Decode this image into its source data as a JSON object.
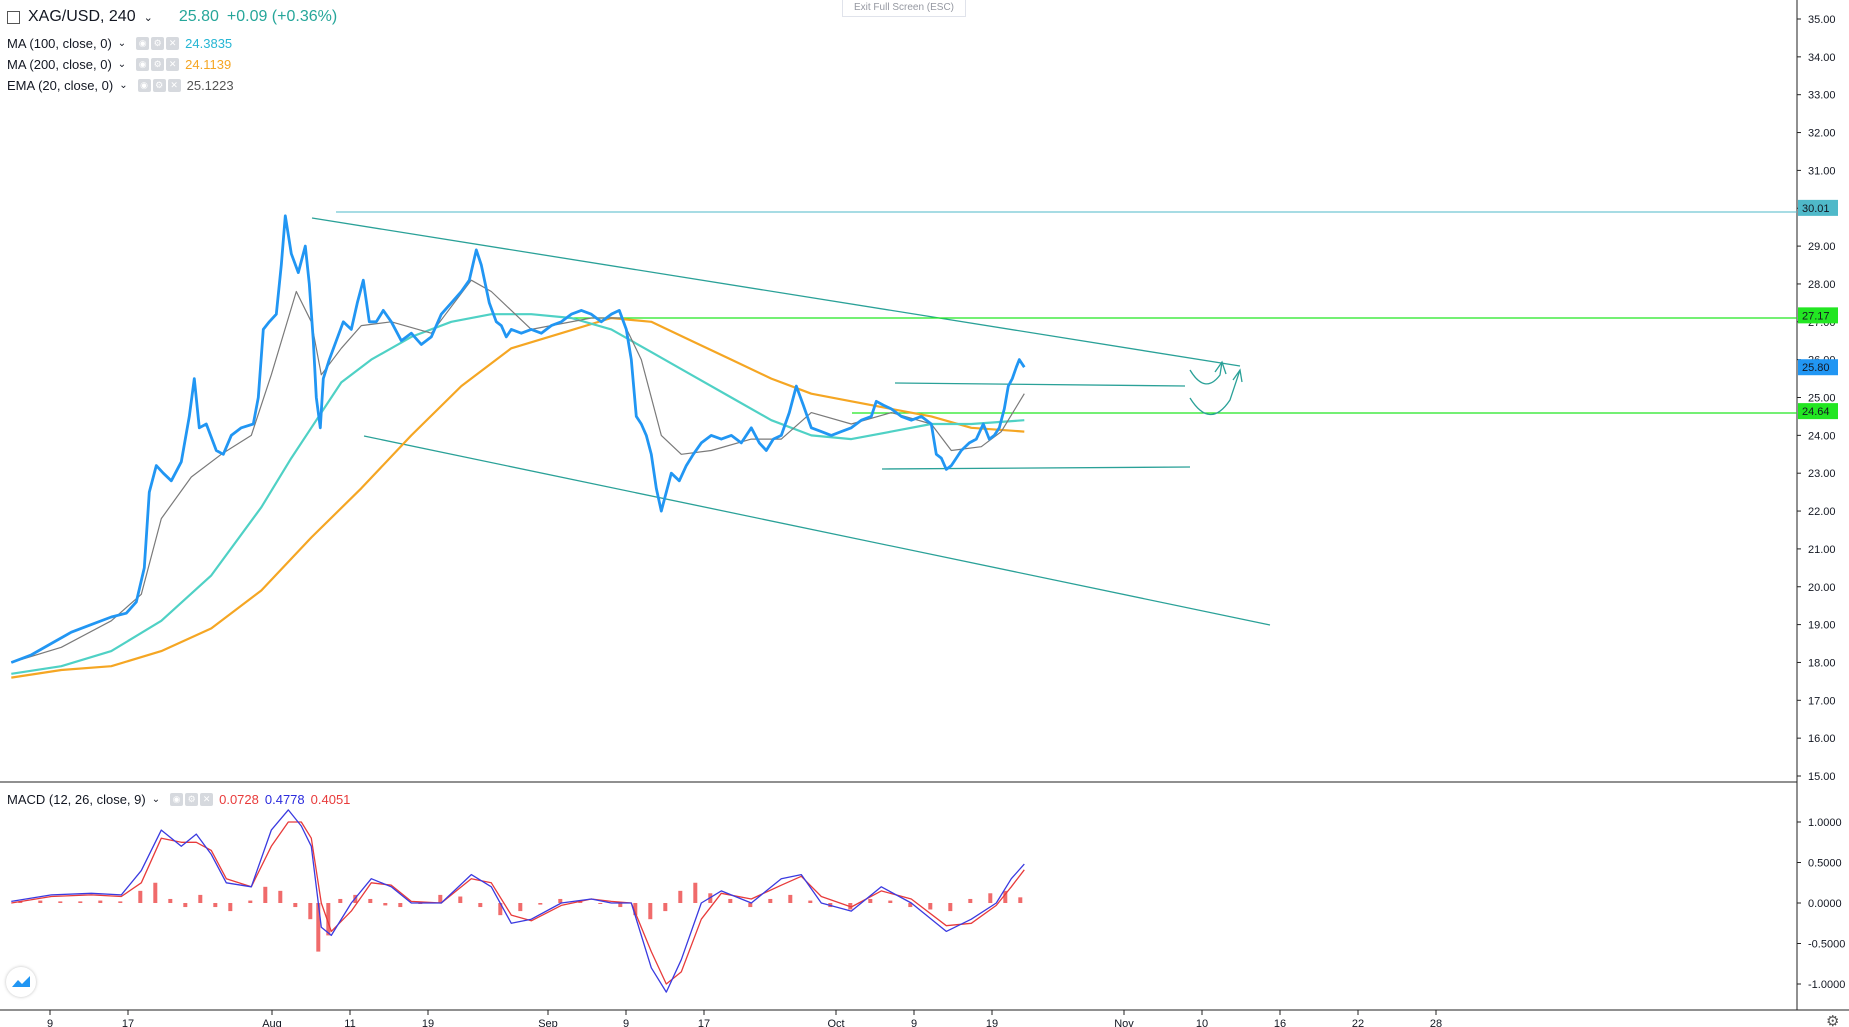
{
  "header": {
    "symbol": "XAG/USD, 240",
    "price": "25.80",
    "change": "+0.09 (+0.36%)"
  },
  "exit_fullscreen": "Exit Full Screen (ESC)",
  "indicators": [
    {
      "label": "MA (100, close, 0)",
      "value": "24.3835",
      "color": "#26b6d4"
    },
    {
      "label": "MA (200, close, 0)",
      "value": "24.1139",
      "color": "#f5a623"
    },
    {
      "label": "EMA (20, close, 0)",
      "value": "25.1223",
      "color": "#555555"
    }
  ],
  "macd": {
    "label": "MACD (12, 26, close, 9)",
    "values": [
      "0.0728",
      "0.4778",
      "0.4051"
    ],
    "colors": [
      "#e83b3b",
      "#2b2bdd",
      "#e83b3b"
    ]
  },
  "chart_data": {
    "type": "line",
    "price_axis": {
      "ticks": [
        "35.00",
        "34.00",
        "33.00",
        "32.00",
        "31.00",
        "30.00",
        "29.00",
        "28.00",
        "27.00",
        "26.00",
        "25.00",
        "24.00",
        "23.00",
        "22.00",
        "21.00",
        "20.00",
        "19.00",
        "18.00",
        "17.00",
        "16.00",
        "15.00"
      ],
      "ylim": [
        15,
        35.5
      ]
    },
    "macd_axis": {
      "ticks": [
        "1.0000",
        "0.5000",
        "0.0000",
        "-0.5000",
        "-1.0000"
      ]
    },
    "x_ticks": [
      "9",
      "17",
      "Aug",
      "11",
      "19",
      "Sep",
      "9",
      "17",
      "Oct",
      "9",
      "19",
      "Nov",
      "10",
      "16",
      "22",
      "28"
    ],
    "price_labels": [
      {
        "value": 30.01,
        "text": "30.01",
        "color": "#4fb9c9"
      },
      {
        "value": 27.17,
        "text": "27.17",
        "color": "#22e622"
      },
      {
        "value": 25.8,
        "text": "25.80",
        "color": "#2196f3"
      },
      {
        "value": 24.64,
        "text": "24.64",
        "color": "#22e622"
      }
    ],
    "price_series": [
      [
        0,
        18.0
      ],
      [
        20,
        18.2
      ],
      [
        40,
        18.5
      ],
      [
        60,
        18.8
      ],
      [
        80,
        19.0
      ],
      [
        100,
        19.2
      ],
      [
        115,
        19.3
      ],
      [
        125,
        19.6
      ],
      [
        133,
        20.5
      ],
      [
        138,
        22.5
      ],
      [
        145,
        23.2
      ],
      [
        152,
        23.0
      ],
      [
        160,
        22.8
      ],
      [
        170,
        23.3
      ],
      [
        178,
        24.5
      ],
      [
        183,
        25.5
      ],
      [
        188,
        24.2
      ],
      [
        195,
        24.3
      ],
      [
        205,
        23.6
      ],
      [
        212,
        23.5
      ],
      [
        220,
        24.0
      ],
      [
        230,
        24.2
      ],
      [
        242,
        24.3
      ],
      [
        247,
        25.0
      ],
      [
        252,
        26.8
      ],
      [
        258,
        27.0
      ],
      [
        265,
        27.2
      ],
      [
        270,
        28.5
      ],
      [
        274,
        29.8
      ],
      [
        280,
        28.8
      ],
      [
        287,
        28.3
      ],
      [
        294,
        29.0
      ],
      [
        298,
        28.0
      ],
      [
        302,
        26.5
      ],
      [
        305,
        25.0
      ],
      [
        309,
        24.2
      ],
      [
        312,
        25.5
      ],
      [
        318,
        26.0
      ],
      [
        325,
        26.5
      ],
      [
        332,
        27.0
      ],
      [
        340,
        26.8
      ],
      [
        346,
        27.5
      ],
      [
        352,
        28.1
      ],
      [
        358,
        27.0
      ],
      [
        365,
        27.0
      ],
      [
        372,
        27.3
      ],
      [
        380,
        27.0
      ],
      [
        390,
        26.5
      ],
      [
        400,
        26.7
      ],
      [
        410,
        26.4
      ],
      [
        420,
        26.6
      ],
      [
        430,
        27.2
      ],
      [
        440,
        27.5
      ],
      [
        450,
        27.8
      ],
      [
        458,
        28.1
      ],
      [
        465,
        28.9
      ],
      [
        470,
        28.5
      ],
      [
        478,
        27.5
      ],
      [
        485,
        27.0
      ],
      [
        490,
        26.9
      ],
      [
        495,
        26.6
      ],
      [
        500,
        26.8
      ],
      [
        510,
        26.7
      ],
      [
        520,
        26.8
      ],
      [
        530,
        26.7
      ],
      [
        540,
        26.9
      ],
      [
        550,
        27.0
      ],
      [
        560,
        27.2
      ],
      [
        570,
        27.3
      ],
      [
        580,
        27.2
      ],
      [
        590,
        27.0
      ],
      [
        600,
        27.2
      ],
      [
        608,
        27.3
      ],
      [
        615,
        26.8
      ],
      [
        620,
        26.0
      ],
      [
        625,
        24.5
      ],
      [
        630,
        24.3
      ],
      [
        635,
        24.0
      ],
      [
        640,
        23.5
      ],
      [
        645,
        22.6
      ],
      [
        650,
        22.0
      ],
      [
        655,
        22.5
      ],
      [
        660,
        23.0
      ],
      [
        668,
        22.8
      ],
      [
        675,
        23.2
      ],
      [
        682,
        23.5
      ],
      [
        690,
        23.8
      ],
      [
        700,
        24.0
      ],
      [
        710,
        23.9
      ],
      [
        720,
        24.0
      ],
      [
        730,
        23.8
      ],
      [
        740,
        24.2
      ],
      [
        748,
        23.8
      ],
      [
        755,
        23.6
      ],
      [
        762,
        23.9
      ],
      [
        770,
        24.0
      ],
      [
        778,
        24.6
      ],
      [
        785,
        25.3
      ],
      [
        792,
        24.8
      ],
      [
        800,
        24.2
      ],
      [
        810,
        24.1
      ],
      [
        820,
        24.0
      ],
      [
        830,
        24.1
      ],
      [
        840,
        24.2
      ],
      [
        850,
        24.4
      ],
      [
        860,
        24.5
      ],
      [
        865,
        24.9
      ],
      [
        872,
        24.8
      ],
      [
        880,
        24.7
      ],
      [
        890,
        24.5
      ],
      [
        900,
        24.4
      ],
      [
        910,
        24.5
      ],
      [
        920,
        24.3
      ],
      [
        925,
        23.5
      ],
      [
        930,
        23.4
      ],
      [
        935,
        23.1
      ],
      [
        940,
        23.2
      ],
      [
        945,
        23.4
      ],
      [
        950,
        23.6
      ],
      [
        958,
        23.8
      ],
      [
        965,
        23.9
      ],
      [
        972,
        24.3
      ],
      [
        978,
        23.9
      ],
      [
        983,
        24.0
      ],
      [
        988,
        24.2
      ],
      [
        993,
        24.7
      ],
      [
        997,
        25.3
      ],
      [
        1001,
        25.5
      ],
      [
        1005,
        25.8
      ],
      [
        1008,
        26.0
      ],
      [
        1013,
        25.8
      ]
    ],
    "ema20": [
      [
        0,
        18.0
      ],
      [
        50,
        18.4
      ],
      [
        100,
        19.1
      ],
      [
        130,
        19.8
      ],
      [
        150,
        21.8
      ],
      [
        180,
        22.9
      ],
      [
        210,
        23.5
      ],
      [
        240,
        24.0
      ],
      [
        260,
        25.6
      ],
      [
        285,
        27.8
      ],
      [
        300,
        27.0
      ],
      [
        310,
        25.6
      ],
      [
        330,
        26.3
      ],
      [
        350,
        26.9
      ],
      [
        380,
        27.0
      ],
      [
        420,
        26.7
      ],
      [
        460,
        28.1
      ],
      [
        480,
        27.8
      ],
      [
        520,
        26.8
      ],
      [
        580,
        27.1
      ],
      [
        610,
        27.1
      ],
      [
        630,
        26.0
      ],
      [
        650,
        24.0
      ],
      [
        670,
        23.5
      ],
      [
        700,
        23.6
      ],
      [
        740,
        23.9
      ],
      [
        770,
        23.9
      ],
      [
        800,
        24.6
      ],
      [
        840,
        24.3
      ],
      [
        880,
        24.6
      ],
      [
        920,
        24.3
      ],
      [
        940,
        23.6
      ],
      [
        970,
        23.7
      ],
      [
        990,
        24.1
      ],
      [
        1013,
        25.1
      ]
    ],
    "ma100": [
      [
        0,
        17.7
      ],
      [
        50,
        17.9
      ],
      [
        100,
        18.3
      ],
      [
        150,
        19.1
      ],
      [
        200,
        20.3
      ],
      [
        250,
        22.1
      ],
      [
        280,
        23.4
      ],
      [
        300,
        24.2
      ],
      [
        330,
        25.4
      ],
      [
        360,
        26.0
      ],
      [
        400,
        26.6
      ],
      [
        440,
        27.0
      ],
      [
        480,
        27.2
      ],
      [
        520,
        27.2
      ],
      [
        560,
        27.1
      ],
      [
        600,
        26.8
      ],
      [
        640,
        26.2
      ],
      [
        680,
        25.6
      ],
      [
        720,
        25.0
      ],
      [
        760,
        24.4
      ],
      [
        800,
        24.0
      ],
      [
        840,
        23.9
      ],
      [
        880,
        24.1
      ],
      [
        920,
        24.3
      ],
      [
        960,
        24.3
      ],
      [
        1013,
        24.4
      ]
    ],
    "ma200": [
      [
        0,
        17.6
      ],
      [
        50,
        17.8
      ],
      [
        100,
        17.9
      ],
      [
        150,
        18.3
      ],
      [
        200,
        18.9
      ],
      [
        250,
        19.9
      ],
      [
        300,
        21.3
      ],
      [
        350,
        22.6
      ],
      [
        400,
        24.0
      ],
      [
        450,
        25.3
      ],
      [
        500,
        26.3
      ],
      [
        550,
        26.7
      ],
      [
        600,
        27.1
      ],
      [
        640,
        27.0
      ],
      [
        680,
        26.5
      ],
      [
        720,
        26.0
      ],
      [
        760,
        25.5
      ],
      [
        800,
        25.1
      ],
      [
        840,
        24.9
      ],
      [
        880,
        24.7
      ],
      [
        920,
        24.5
      ],
      [
        960,
        24.2
      ],
      [
        1013,
        24.1
      ]
    ],
    "macd_line": [
      [
        0,
        0.02
      ],
      [
        40,
        0.1
      ],
      [
        80,
        0.12
      ],
      [
        110,
        0.1
      ],
      [
        130,
        0.4
      ],
      [
        150,
        0.9
      ],
      [
        170,
        0.7
      ],
      [
        185,
        0.85
      ],
      [
        200,
        0.6
      ],
      [
        215,
        0.25
      ],
      [
        240,
        0.2
      ],
      [
        260,
        0.9
      ],
      [
        277,
        1.15
      ],
      [
        290,
        0.95
      ],
      [
        300,
        0.7
      ],
      [
        310,
        -0.3
      ],
      [
        320,
        -0.4
      ],
      [
        340,
        0.0
      ],
      [
        360,
        0.3
      ],
      [
        380,
        0.2
      ],
      [
        400,
        0.0
      ],
      [
        430,
        0.0
      ],
      [
        460,
        0.35
      ],
      [
        480,
        0.2
      ],
      [
        500,
        -0.25
      ],
      [
        520,
        -0.2
      ],
      [
        550,
        0.0
      ],
      [
        580,
        0.05
      ],
      [
        600,
        0.0
      ],
      [
        620,
        0.0
      ],
      [
        640,
        -0.8
      ],
      [
        655,
        -1.1
      ],
      [
        670,
        -0.7
      ],
      [
        690,
        0.0
      ],
      [
        710,
        0.15
      ],
      [
        740,
        0.0
      ],
      [
        770,
        0.3
      ],
      [
        790,
        0.35
      ],
      [
        810,
        0.0
      ],
      [
        840,
        -0.1
      ],
      [
        870,
        0.2
      ],
      [
        900,
        0.0
      ],
      [
        935,
        -0.35
      ],
      [
        960,
        -0.2
      ],
      [
        985,
        0.0
      ],
      [
        1000,
        0.3
      ],
      [
        1013,
        0.48
      ]
    ],
    "signal_line": [
      [
        0,
        0.0
      ],
      [
        40,
        0.08
      ],
      [
        80,
        0.1
      ],
      [
        110,
        0.08
      ],
      [
        130,
        0.25
      ],
      [
        150,
        0.8
      ],
      [
        170,
        0.75
      ],
      [
        185,
        0.75
      ],
      [
        200,
        0.65
      ],
      [
        215,
        0.3
      ],
      [
        240,
        0.2
      ],
      [
        260,
        0.7
      ],
      [
        277,
        1.0
      ],
      [
        290,
        1.0
      ],
      [
        300,
        0.8
      ],
      [
        310,
        0.0
      ],
      [
        320,
        -0.35
      ],
      [
        340,
        -0.1
      ],
      [
        360,
        0.25
      ],
      [
        380,
        0.22
      ],
      [
        400,
        0.02
      ],
      [
        430,
        0.0
      ],
      [
        460,
        0.3
      ],
      [
        480,
        0.25
      ],
      [
        500,
        -0.15
      ],
      [
        520,
        -0.22
      ],
      [
        550,
        -0.03
      ],
      [
        580,
        0.05
      ],
      [
        600,
        0.02
      ],
      [
        620,
        0.0
      ],
      [
        640,
        -0.6
      ],
      [
        655,
        -1.0
      ],
      [
        670,
        -0.85
      ],
      [
        690,
        -0.2
      ],
      [
        710,
        0.12
      ],
      [
        740,
        0.05
      ],
      [
        770,
        0.22
      ],
      [
        790,
        0.33
      ],
      [
        810,
        0.08
      ],
      [
        840,
        -0.05
      ],
      [
        870,
        0.15
      ],
      [
        900,
        0.05
      ],
      [
        935,
        -0.28
      ],
      [
        960,
        -0.25
      ],
      [
        985,
        -0.03
      ],
      [
        1000,
        0.2
      ],
      [
        1013,
        0.41
      ]
    ],
    "histogram": [
      [
        10,
        0.02
      ],
      [
        30,
        0.03
      ],
      [
        50,
        0.02
      ],
      [
        70,
        0.02
      ],
      [
        90,
        0.03
      ],
      [
        110,
        0.02
      ],
      [
        130,
        0.15
      ],
      [
        145,
        0.25
      ],
      [
        160,
        0.05
      ],
      [
        175,
        -0.05
      ],
      [
        190,
        0.1
      ],
      [
        205,
        -0.05
      ],
      [
        220,
        -0.1
      ],
      [
        240,
        0.03
      ],
      [
        255,
        0.2
      ],
      [
        270,
        0.15
      ],
      [
        285,
        -0.05
      ],
      [
        300,
        -0.2
      ],
      [
        308,
        -0.6
      ],
      [
        318,
        -0.4
      ],
      [
        330,
        0.05
      ],
      [
        345,
        0.1
      ],
      [
        360,
        0.05
      ],
      [
        375,
        -0.03
      ],
      [
        390,
        -0.05
      ],
      [
        410,
        0.0
      ],
      [
        430,
        0.1
      ],
      [
        450,
        0.08
      ],
      [
        470,
        -0.05
      ],
      [
        490,
        -0.15
      ],
      [
        510,
        -0.1
      ],
      [
        530,
        -0.02
      ],
      [
        550,
        0.05
      ],
      [
        570,
        0.02
      ],
      [
        590,
        0.0
      ],
      [
        610,
        -0.05
      ],
      [
        625,
        -0.15
      ],
      [
        640,
        -0.2
      ],
      [
        655,
        -0.1
      ],
      [
        670,
        0.15
      ],
      [
        685,
        0.25
      ],
      [
        700,
        0.12
      ],
      [
        720,
        0.05
      ],
      [
        740,
        -0.05
      ],
      [
        760,
        0.05
      ],
      [
        780,
        0.1
      ],
      [
        800,
        0.03
      ],
      [
        820,
        -0.05
      ],
      [
        840,
        -0.08
      ],
      [
        860,
        0.05
      ],
      [
        880,
        0.03
      ],
      [
        900,
        -0.05
      ],
      [
        920,
        -0.08
      ],
      [
        940,
        -0.1
      ],
      [
        960,
        0.05
      ],
      [
        980,
        0.12
      ],
      [
        995,
        0.15
      ],
      [
        1010,
        0.07
      ]
    ]
  }
}
